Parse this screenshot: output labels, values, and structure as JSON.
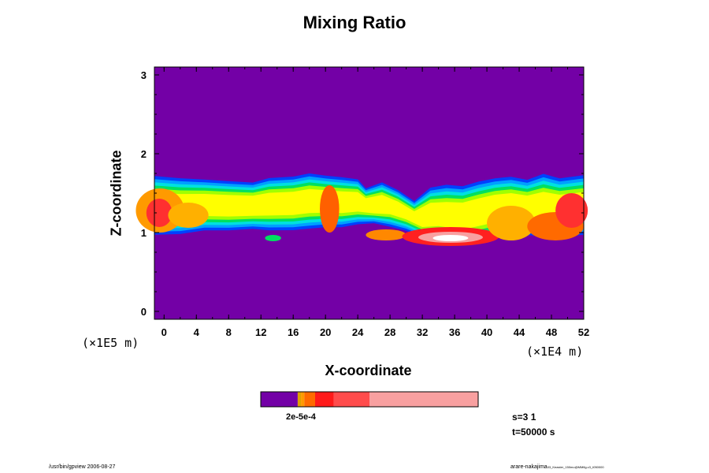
{
  "chart_data": {
    "type": "heatmap",
    "title": "Mixing Ratio",
    "xlabel": "X-coordinate",
    "ylabel": "Z-coordinate",
    "x_unit": "(×1E4 m)",
    "y_unit": "(×1E5 m)",
    "xlim": [
      -1.2,
      52
    ],
    "ylim": [
      -0.1,
      3.1
    ],
    "x_ticks": [
      0,
      4,
      8,
      12,
      16,
      20,
      24,
      28,
      32,
      36,
      40,
      44,
      48,
      52
    ],
    "y_ticks": [
      0,
      1,
      2,
      3
    ],
    "background_color": "#7300a6",
    "colorbar": {
      "segments": [
        {
          "color": "#7300a6",
          "frac": 0.17
        },
        {
          "color": "#e0a000",
          "frac": 0.015
        },
        {
          "color": "#ff9a00",
          "frac": 0.015
        },
        {
          "color": "#ff6a00",
          "frac": 0.05
        },
        {
          "color": "#ff1a1a",
          "frac": 0.085
        },
        {
          "color": "#ff4c4c",
          "frac": 0.165
        },
        {
          "color": "#f8a0a0",
          "frac": 0.5
        }
      ],
      "label": "2e-5e-4"
    },
    "mixing_layer": {
      "top": [
        [
          -1.2,
          1.75
        ],
        [
          2,
          1.72
        ],
        [
          5,
          1.7
        ],
        [
          8,
          1.68
        ],
        [
          11,
          1.66
        ],
        [
          13,
          1.72
        ],
        [
          16,
          1.74
        ],
        [
          18,
          1.78
        ],
        [
          20,
          1.75
        ],
        [
          22,
          1.73
        ],
        [
          24,
          1.7
        ],
        [
          25,
          1.58
        ],
        [
          27,
          1.66
        ],
        [
          29,
          1.56
        ],
        [
          31,
          1.42
        ],
        [
          33,
          1.6
        ],
        [
          35,
          1.64
        ],
        [
          37,
          1.62
        ],
        [
          39,
          1.68
        ],
        [
          41,
          1.72
        ],
        [
          43,
          1.74
        ],
        [
          45,
          1.7
        ],
        [
          47,
          1.78
        ],
        [
          49,
          1.72
        ],
        [
          52,
          1.76
        ]
      ],
      "bottom": [
        [
          -1.2,
          0.94
        ],
        [
          2,
          0.95
        ],
        [
          5,
          1.0
        ],
        [
          8,
          1.0
        ],
        [
          11,
          1.02
        ],
        [
          13,
          1.0
        ],
        [
          16,
          1.0
        ],
        [
          18,
          1.02
        ],
        [
          20,
          1.04
        ],
        [
          22,
          1.04
        ],
        [
          24,
          1.08
        ],
        [
          26,
          1.1
        ],
        [
          28,
          1.05
        ],
        [
          30,
          1.0
        ],
        [
          32,
          0.92
        ],
        [
          34,
          0.86
        ],
        [
          36,
          0.8
        ],
        [
          38,
          0.82
        ],
        [
          40,
          0.86
        ],
        [
          42,
          0.92
        ],
        [
          44,
          0.94
        ],
        [
          46,
          0.93
        ],
        [
          48,
          0.9
        ],
        [
          50,
          0.92
        ],
        [
          52,
          0.94
        ]
      ],
      "contours": [
        {
          "color": "#0040ff",
          "scale": 0.92
        },
        {
          "color": "#00a0ff",
          "scale": 0.82
        },
        {
          "color": "#00e0e0",
          "scale": 0.72
        },
        {
          "color": "#00e060",
          "scale": 0.62
        },
        {
          "color": "#a0ff00",
          "scale": 0.52
        },
        {
          "color": "#ffff00",
          "scale": 0.4
        }
      ],
      "blobs": [
        {
          "x": -0.5,
          "z": 1.28,
          "rx": 3.0,
          "rz": 0.28,
          "color": "#ff9a00"
        },
        {
          "x": -0.6,
          "z": 1.25,
          "rx": 1.6,
          "rz": 0.18,
          "color": "#ff3030"
        },
        {
          "x": 3.0,
          "z": 1.22,
          "rx": 2.5,
          "rz": 0.16,
          "color": "#ffb000"
        },
        {
          "x": 20.5,
          "z": 1.3,
          "rx": 1.2,
          "rz": 0.3,
          "color": "#ff6000"
        },
        {
          "x": 13.5,
          "z": 0.93,
          "rx": 1.0,
          "rz": 0.04,
          "color": "#00e060"
        },
        {
          "x": 27.5,
          "z": 0.97,
          "rx": 2.5,
          "rz": 0.07,
          "color": "#ff8800"
        },
        {
          "x": 35.5,
          "z": 0.95,
          "rx": 6.0,
          "rz": 0.12,
          "color": "#ff2020"
        },
        {
          "x": 35.5,
          "z": 0.94,
          "rx": 4.0,
          "rz": 0.07,
          "color": "#f8a0a0"
        },
        {
          "x": 35.5,
          "z": 0.93,
          "rx": 2.2,
          "rz": 0.04,
          "color": "#ffffff"
        },
        {
          "x": 43.0,
          "z": 1.12,
          "rx": 3.0,
          "rz": 0.22,
          "color": "#ffb000"
        },
        {
          "x": 48.5,
          "z": 1.08,
          "rx": 3.5,
          "rz": 0.18,
          "color": "#ff6a00"
        },
        {
          "x": 50.5,
          "z": 1.28,
          "rx": 2.0,
          "rz": 0.22,
          "color": "#ff3030"
        }
      ]
    }
  },
  "info": {
    "line1": "s=3 1",
    "line2": "t=50000 s"
  },
  "footer": {
    "left": "/usr/bin/gpview 2006-08-27",
    "right": "arare-nakajima",
    "right_small": "03_Keaster_150mo@MMfig.c3_t050000"
  }
}
